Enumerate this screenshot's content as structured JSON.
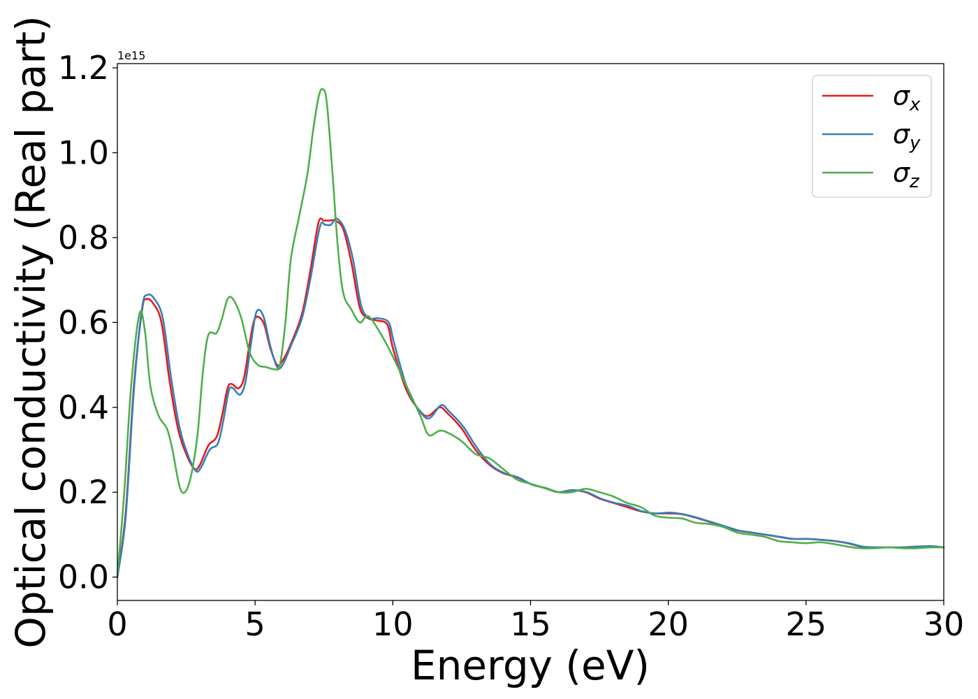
{
  "chart_data": {
    "type": "line",
    "title": "",
    "xlabel": "Energy (eV)",
    "ylabel": "Optical conductivity (Real part)",
    "y_offset_text": "1e15",
    "xlim": [
      0,
      30
    ],
    "ylim": [
      -0.055,
      1.21
    ],
    "xticks": [
      0,
      5,
      10,
      15,
      20,
      25,
      30
    ],
    "xtick_labels": [
      "0",
      "5",
      "10",
      "15",
      "20",
      "25",
      "30"
    ],
    "yticks": [
      0.0,
      0.2,
      0.4,
      0.6,
      0.8,
      1.0,
      1.2
    ],
    "ytick_labels": [
      "0.0",
      "0.2",
      "0.4",
      "0.6",
      "0.8",
      "1.0",
      "1.2"
    ],
    "grid": false,
    "legend_position": "top-right",
    "series": [
      {
        "name": "σx",
        "legend_base": "σ",
        "legend_sub": "x",
        "color": "#e41a1c",
        "x": [
          0,
          0.3,
          0.6,
          0.9,
          1.05,
          1.3,
          1.6,
          1.9,
          2.2,
          2.5,
          2.8,
          3.0,
          3.3,
          3.6,
          3.8,
          4.0,
          4.15,
          4.4,
          4.6,
          4.8,
          5.0,
          5.3,
          5.55,
          5.8,
          6.0,
          6.3,
          6.7,
          7.0,
          7.3,
          7.5,
          7.7,
          7.9,
          8.2,
          8.5,
          8.8,
          9.1,
          9.4,
          9.8,
          10.0,
          10.5,
          11.0,
          11.3,
          11.7,
          12.0,
          12.5,
          13.0,
          13.5,
          14.0,
          14.5,
          15.0,
          15.5,
          16.0,
          16.5,
          17.0,
          17.5,
          18.0,
          18.5,
          19.0,
          19.5,
          20.0,
          20.5,
          21.0,
          21.5,
          22.0,
          22.5,
          23.0,
          23.5,
          24.0,
          24.5,
          25.0,
          25.5,
          26.0,
          26.5,
          27.0,
          27.5,
          28.0,
          28.5,
          29.0,
          29.5,
          30.0
        ],
        "y": [
          0.0,
          0.15,
          0.45,
          0.63,
          0.655,
          0.645,
          0.6,
          0.46,
          0.35,
          0.29,
          0.255,
          0.265,
          0.31,
          0.33,
          0.38,
          0.445,
          0.455,
          0.445,
          0.47,
          0.55,
          0.61,
          0.6,
          0.54,
          0.5,
          0.51,
          0.55,
          0.62,
          0.72,
          0.835,
          0.84,
          0.84,
          0.84,
          0.82,
          0.74,
          0.635,
          0.61,
          0.605,
          0.595,
          0.54,
          0.44,
          0.39,
          0.38,
          0.4,
          0.385,
          0.35,
          0.3,
          0.265,
          0.245,
          0.235,
          0.22,
          0.21,
          0.2,
          0.205,
          0.2,
          0.185,
          0.175,
          0.165,
          0.155,
          0.15,
          0.15,
          0.148,
          0.14,
          0.13,
          0.12,
          0.11,
          0.105,
          0.1,
          0.095,
          0.09,
          0.09,
          0.088,
          0.085,
          0.08,
          0.072,
          0.07,
          0.07,
          0.07,
          0.072,
          0.072,
          0.07
        ]
      },
      {
        "name": "σy",
        "legend_base": "σ",
        "legend_sub": "y",
        "color": "#377eb8",
        "x": [
          0,
          0.3,
          0.6,
          0.9,
          1.1,
          1.35,
          1.65,
          1.95,
          2.25,
          2.55,
          2.85,
          3.05,
          3.35,
          3.65,
          3.85,
          4.05,
          4.2,
          4.45,
          4.65,
          4.85,
          5.05,
          5.3,
          5.55,
          5.8,
          6.0,
          6.3,
          6.7,
          7.0,
          7.35,
          7.55,
          7.75,
          7.95,
          8.25,
          8.55,
          8.85,
          9.15,
          9.45,
          9.85,
          10.05,
          10.55,
          11.05,
          11.35,
          11.75,
          12.05,
          12.55,
          13.05,
          13.55,
          14.05,
          14.55,
          15.05,
          15.55,
          16.05,
          16.55,
          17.05,
          17.55,
          18.05,
          18.55,
          19.05,
          19.55,
          20.05,
          20.55,
          21.05,
          21.55,
          22.05,
          22.55,
          23.05,
          23.55,
          24.05,
          24.55,
          25.05,
          25.55,
          26.05,
          26.55,
          27.05,
          27.55,
          28.05,
          28.55,
          29.05,
          29.55,
          30.0
        ],
        "y": [
          0.0,
          0.14,
          0.44,
          0.635,
          0.665,
          0.655,
          0.61,
          0.47,
          0.355,
          0.29,
          0.25,
          0.26,
          0.3,
          0.315,
          0.37,
          0.44,
          0.445,
          0.43,
          0.46,
          0.55,
          0.625,
          0.615,
          0.545,
          0.495,
          0.5,
          0.545,
          0.61,
          0.7,
          0.825,
          0.83,
          0.83,
          0.845,
          0.82,
          0.75,
          0.64,
          0.61,
          0.61,
          0.6,
          0.55,
          0.44,
          0.385,
          0.375,
          0.405,
          0.39,
          0.355,
          0.305,
          0.265,
          0.245,
          0.235,
          0.218,
          0.21,
          0.2,
          0.205,
          0.2,
          0.185,
          0.175,
          0.168,
          0.155,
          0.15,
          0.152,
          0.148,
          0.14,
          0.13,
          0.12,
          0.11,
          0.105,
          0.1,
          0.095,
          0.09,
          0.09,
          0.088,
          0.085,
          0.08,
          0.072,
          0.07,
          0.07,
          0.07,
          0.072,
          0.073,
          0.07
        ]
      },
      {
        "name": "σz",
        "legend_base": "σ",
        "legend_sub": "z",
        "color": "#4daf4a",
        "x": [
          0,
          0.25,
          0.5,
          0.8,
          1.0,
          1.2,
          1.5,
          1.8,
          2.0,
          2.3,
          2.6,
          2.9,
          3.1,
          3.3,
          3.6,
          3.8,
          4.0,
          4.2,
          4.5,
          4.8,
          5.1,
          5.4,
          5.7,
          5.9,
          6.1,
          6.3,
          6.6,
          6.9,
          7.1,
          7.3,
          7.45,
          7.6,
          7.8,
          8.0,
          8.2,
          8.5,
          8.8,
          9.1,
          9.5,
          10.0,
          10.5,
          11.0,
          11.3,
          11.7,
          12.0,
          12.5,
          13.0,
          13.5,
          14.0,
          14.5,
          15.0,
          15.5,
          16.0,
          16.5,
          17.0,
          17.5,
          18.0,
          18.5,
          19.0,
          19.5,
          20.0,
          20.5,
          21.0,
          21.5,
          22.0,
          22.5,
          23.0,
          23.5,
          24.0,
          24.5,
          25.0,
          25.5,
          26.0,
          26.5,
          27.0,
          27.5,
          28.0,
          28.5,
          29.0,
          29.5,
          30.0
        ],
        "y": [
          0.0,
          0.2,
          0.45,
          0.62,
          0.58,
          0.45,
          0.38,
          0.35,
          0.3,
          0.205,
          0.22,
          0.33,
          0.48,
          0.57,
          0.575,
          0.61,
          0.655,
          0.655,
          0.61,
          0.53,
          0.5,
          0.495,
          0.49,
          0.5,
          0.6,
          0.75,
          0.85,
          0.95,
          1.05,
          1.13,
          1.15,
          1.12,
          0.96,
          0.78,
          0.67,
          0.63,
          0.6,
          0.615,
          0.58,
          0.52,
          0.45,
          0.38,
          0.335,
          0.345,
          0.34,
          0.32,
          0.29,
          0.28,
          0.255,
          0.23,
          0.22,
          0.21,
          0.2,
          0.2,
          0.208,
          0.2,
          0.19,
          0.175,
          0.165,
          0.145,
          0.14,
          0.138,
          0.128,
          0.125,
          0.118,
          0.105,
          0.1,
          0.095,
          0.085,
          0.082,
          0.08,
          0.082,
          0.078,
          0.072,
          0.068,
          0.068,
          0.07,
          0.068,
          0.068,
          0.07,
          0.07
        ]
      }
    ]
  }
}
